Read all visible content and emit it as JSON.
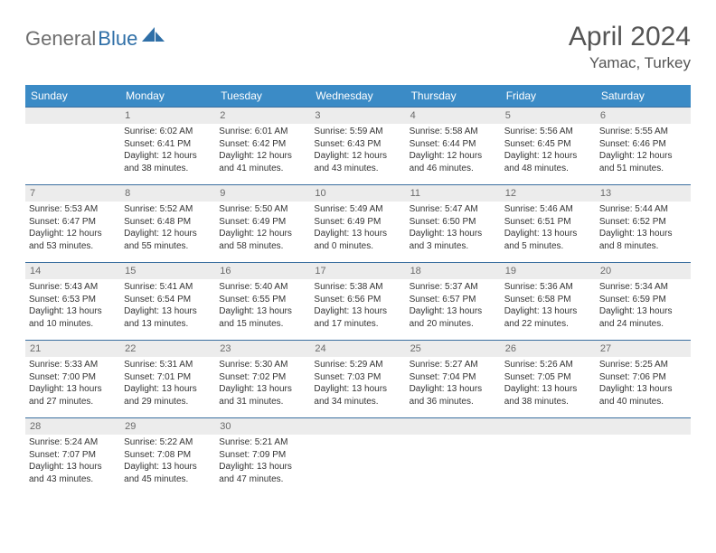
{
  "brand": {
    "part1": "General",
    "part2": "Blue"
  },
  "header": {
    "title": "April 2024",
    "location": "Yamac, Turkey"
  },
  "colors": {
    "header_bg": "#3b8bc6",
    "header_text": "#ffffff",
    "row_border": "#3b6fa0",
    "daynum_bg": "#ececec",
    "daynum_text": "#6a6a6a",
    "body_text": "#333333",
    "logo_gray": "#6e6e6e",
    "logo_blue": "#2f6fa7"
  },
  "weekdays": [
    "Sunday",
    "Monday",
    "Tuesday",
    "Wednesday",
    "Thursday",
    "Friday",
    "Saturday"
  ],
  "weeks": [
    [
      {
        "n": "",
        "l1": "",
        "l2": "",
        "l3": "",
        "l4": ""
      },
      {
        "n": "1",
        "l1": "Sunrise: 6:02 AM",
        "l2": "Sunset: 6:41 PM",
        "l3": "Daylight: 12 hours",
        "l4": "and 38 minutes."
      },
      {
        "n": "2",
        "l1": "Sunrise: 6:01 AM",
        "l2": "Sunset: 6:42 PM",
        "l3": "Daylight: 12 hours",
        "l4": "and 41 minutes."
      },
      {
        "n": "3",
        "l1": "Sunrise: 5:59 AM",
        "l2": "Sunset: 6:43 PM",
        "l3": "Daylight: 12 hours",
        "l4": "and 43 minutes."
      },
      {
        "n": "4",
        "l1": "Sunrise: 5:58 AM",
        "l2": "Sunset: 6:44 PM",
        "l3": "Daylight: 12 hours",
        "l4": "and 46 minutes."
      },
      {
        "n": "5",
        "l1": "Sunrise: 5:56 AM",
        "l2": "Sunset: 6:45 PM",
        "l3": "Daylight: 12 hours",
        "l4": "and 48 minutes."
      },
      {
        "n": "6",
        "l1": "Sunrise: 5:55 AM",
        "l2": "Sunset: 6:46 PM",
        "l3": "Daylight: 12 hours",
        "l4": "and 51 minutes."
      }
    ],
    [
      {
        "n": "7",
        "l1": "Sunrise: 5:53 AM",
        "l2": "Sunset: 6:47 PM",
        "l3": "Daylight: 12 hours",
        "l4": "and 53 minutes."
      },
      {
        "n": "8",
        "l1": "Sunrise: 5:52 AM",
        "l2": "Sunset: 6:48 PM",
        "l3": "Daylight: 12 hours",
        "l4": "and 55 minutes."
      },
      {
        "n": "9",
        "l1": "Sunrise: 5:50 AM",
        "l2": "Sunset: 6:49 PM",
        "l3": "Daylight: 12 hours",
        "l4": "and 58 minutes."
      },
      {
        "n": "10",
        "l1": "Sunrise: 5:49 AM",
        "l2": "Sunset: 6:49 PM",
        "l3": "Daylight: 13 hours",
        "l4": "and 0 minutes."
      },
      {
        "n": "11",
        "l1": "Sunrise: 5:47 AM",
        "l2": "Sunset: 6:50 PM",
        "l3": "Daylight: 13 hours",
        "l4": "and 3 minutes."
      },
      {
        "n": "12",
        "l1": "Sunrise: 5:46 AM",
        "l2": "Sunset: 6:51 PM",
        "l3": "Daylight: 13 hours",
        "l4": "and 5 minutes."
      },
      {
        "n": "13",
        "l1": "Sunrise: 5:44 AM",
        "l2": "Sunset: 6:52 PM",
        "l3": "Daylight: 13 hours",
        "l4": "and 8 minutes."
      }
    ],
    [
      {
        "n": "14",
        "l1": "Sunrise: 5:43 AM",
        "l2": "Sunset: 6:53 PM",
        "l3": "Daylight: 13 hours",
        "l4": "and 10 minutes."
      },
      {
        "n": "15",
        "l1": "Sunrise: 5:41 AM",
        "l2": "Sunset: 6:54 PM",
        "l3": "Daylight: 13 hours",
        "l4": "and 13 minutes."
      },
      {
        "n": "16",
        "l1": "Sunrise: 5:40 AM",
        "l2": "Sunset: 6:55 PM",
        "l3": "Daylight: 13 hours",
        "l4": "and 15 minutes."
      },
      {
        "n": "17",
        "l1": "Sunrise: 5:38 AM",
        "l2": "Sunset: 6:56 PM",
        "l3": "Daylight: 13 hours",
        "l4": "and 17 minutes."
      },
      {
        "n": "18",
        "l1": "Sunrise: 5:37 AM",
        "l2": "Sunset: 6:57 PM",
        "l3": "Daylight: 13 hours",
        "l4": "and 20 minutes."
      },
      {
        "n": "19",
        "l1": "Sunrise: 5:36 AM",
        "l2": "Sunset: 6:58 PM",
        "l3": "Daylight: 13 hours",
        "l4": "and 22 minutes."
      },
      {
        "n": "20",
        "l1": "Sunrise: 5:34 AM",
        "l2": "Sunset: 6:59 PM",
        "l3": "Daylight: 13 hours",
        "l4": "and 24 minutes."
      }
    ],
    [
      {
        "n": "21",
        "l1": "Sunrise: 5:33 AM",
        "l2": "Sunset: 7:00 PM",
        "l3": "Daylight: 13 hours",
        "l4": "and 27 minutes."
      },
      {
        "n": "22",
        "l1": "Sunrise: 5:31 AM",
        "l2": "Sunset: 7:01 PM",
        "l3": "Daylight: 13 hours",
        "l4": "and 29 minutes."
      },
      {
        "n": "23",
        "l1": "Sunrise: 5:30 AM",
        "l2": "Sunset: 7:02 PM",
        "l3": "Daylight: 13 hours",
        "l4": "and 31 minutes."
      },
      {
        "n": "24",
        "l1": "Sunrise: 5:29 AM",
        "l2": "Sunset: 7:03 PM",
        "l3": "Daylight: 13 hours",
        "l4": "and 34 minutes."
      },
      {
        "n": "25",
        "l1": "Sunrise: 5:27 AM",
        "l2": "Sunset: 7:04 PM",
        "l3": "Daylight: 13 hours",
        "l4": "and 36 minutes."
      },
      {
        "n": "26",
        "l1": "Sunrise: 5:26 AM",
        "l2": "Sunset: 7:05 PM",
        "l3": "Daylight: 13 hours",
        "l4": "and 38 minutes."
      },
      {
        "n": "27",
        "l1": "Sunrise: 5:25 AM",
        "l2": "Sunset: 7:06 PM",
        "l3": "Daylight: 13 hours",
        "l4": "and 40 minutes."
      }
    ],
    [
      {
        "n": "28",
        "l1": "Sunrise: 5:24 AM",
        "l2": "Sunset: 7:07 PM",
        "l3": "Daylight: 13 hours",
        "l4": "and 43 minutes."
      },
      {
        "n": "29",
        "l1": "Sunrise: 5:22 AM",
        "l2": "Sunset: 7:08 PM",
        "l3": "Daylight: 13 hours",
        "l4": "and 45 minutes."
      },
      {
        "n": "30",
        "l1": "Sunrise: 5:21 AM",
        "l2": "Sunset: 7:09 PM",
        "l3": "Daylight: 13 hours",
        "l4": "and 47 minutes."
      },
      {
        "n": "",
        "l1": "",
        "l2": "",
        "l3": "",
        "l4": ""
      },
      {
        "n": "",
        "l1": "",
        "l2": "",
        "l3": "",
        "l4": ""
      },
      {
        "n": "",
        "l1": "",
        "l2": "",
        "l3": "",
        "l4": ""
      },
      {
        "n": "",
        "l1": "",
        "l2": "",
        "l3": "",
        "l4": ""
      }
    ]
  ]
}
